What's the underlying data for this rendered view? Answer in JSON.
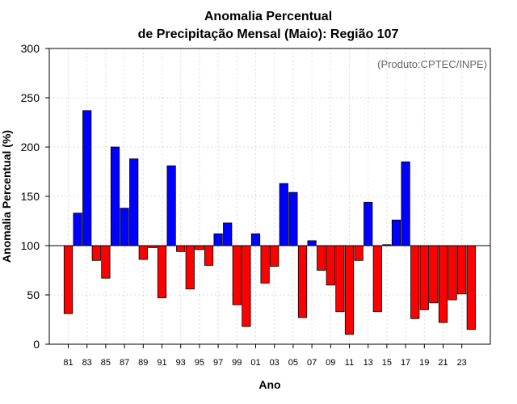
{
  "chart_data": {
    "type": "bar",
    "title_line1": "Anomalia Percentual",
    "title_line2": "de Precipitação Mensal (Maio): Região 107",
    "source_note": "(Produto:CPTEC/INPE)",
    "xlabel": "Ano",
    "ylabel": "Anomalia Percentual (%)",
    "ylim": [
      0,
      300
    ],
    "yticks": [
      0,
      50,
      100,
      150,
      200,
      250,
      300
    ],
    "baseline": 100,
    "grid": true,
    "colors": {
      "above": "#0000ff",
      "below": "#ff0000",
      "edge": "#000000",
      "grid": "#d9d9d9"
    },
    "categories": [
      "81",
      "82",
      "83",
      "84",
      "85",
      "86",
      "87",
      "88",
      "89",
      "90",
      "91",
      "92",
      "93",
      "94",
      "95",
      "96",
      "97",
      "98",
      "99",
      "00",
      "01",
      "02",
      "03",
      "04",
      "05",
      "06",
      "07",
      "08",
      "09",
      "10",
      "11",
      "12",
      "13",
      "14",
      "15",
      "16",
      "17",
      "18",
      "19",
      "20",
      "21",
      "22",
      "23",
      "24"
    ],
    "xtick_labels": [
      "81",
      "83",
      "85",
      "87",
      "89",
      "91",
      "93",
      "95",
      "97",
      "99",
      "01",
      "03",
      "05",
      "07",
      "09",
      "11",
      "13",
      "15",
      "17",
      "19",
      "21",
      "23"
    ],
    "values": [
      31,
      133,
      237,
      85,
      67,
      200,
      138,
      188,
      86,
      98,
      47,
      181,
      94,
      56,
      96,
      80,
      112,
      123,
      40,
      18,
      112,
      62,
      79,
      163,
      154,
      27,
      105,
      75,
      60,
      33,
      10,
      85,
      144,
      33,
      101,
      126,
      185,
      26,
      35,
      42,
      22,
      45,
      51,
      15
    ]
  }
}
